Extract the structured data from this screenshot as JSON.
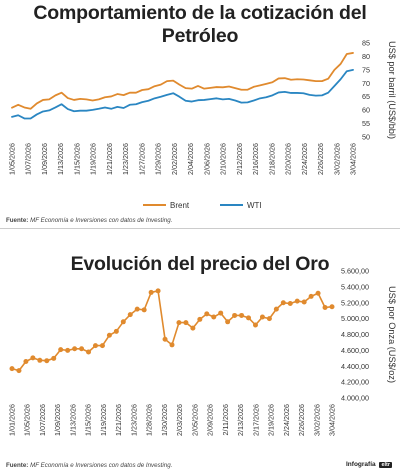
{
  "charts": [
    {
      "title": "Comportamiento de la cotización del Petróleo",
      "source_label": "Fuente:",
      "source_text": "MF Economía e Inversiones con datos de Investing."
    },
    {
      "title": "Evolución del precio del Oro",
      "source_label": "Fuente:",
      "source_text": "MF Economía e Inversiones con datos de Investing.",
      "credit": "Infografía",
      "credit_logo": "eltr"
    }
  ],
  "chart_data": [
    {
      "type": "line",
      "title": "Comportamiento de la cotización del Petróleo",
      "ylabel": "US$ por barril (US$/bbl)",
      "ylim": [
        50,
        85
      ],
      "yticks": [
        50,
        55,
        60,
        65,
        70,
        75,
        80,
        85
      ],
      "axis_position": "right",
      "grid": "none",
      "legend": "bottom",
      "x_tick_labels": [
        "1/05/2026",
        "1/07/2026",
        "1/09/2026",
        "1/13/2026",
        "1/15/2026",
        "1/19/2026",
        "1/21/2026",
        "1/23/2026",
        "1/27/2026",
        "1/29/2026",
        "2/02/2026",
        "2/04/2026",
        "2/06/2026",
        "2/10/2026",
        "2/12/2026",
        "2/16/2026",
        "2/18/2026",
        "2/20/2026",
        "2/24/2026",
        "2/26/2026",
        "3/02/2026",
        "3/04/2026"
      ],
      "series": [
        {
          "name": "Brent",
          "color": "#e08a2e",
          "values": [
            60.9,
            62.0,
            61.0,
            60.5,
            62.5,
            63.8,
            64.0,
            65.5,
            66.5,
            64.5,
            63.8,
            64.2,
            64.0,
            63.6,
            64.0,
            64.8,
            65.1,
            66.0,
            65.6,
            66.5,
            66.5,
            67.5,
            67.8,
            68.9,
            69.5,
            70.8,
            71.0,
            69.5,
            68.2,
            68.0,
            69.0,
            68.0,
            68.3,
            68.6,
            68.5,
            68.8,
            68.2,
            67.6,
            67.6,
            68.7,
            69.2,
            69.8,
            70.4,
            71.8,
            71.9,
            71.3,
            71.5,
            71.4,
            71.1,
            70.8,
            70.8,
            71.7,
            75.0,
            77.2,
            80.9,
            81.3
          ]
        },
        {
          "name": "WTI",
          "color": "#2a86c2",
          "values": [
            57.5,
            58.1,
            56.9,
            56.9,
            58.4,
            59.5,
            59.9,
            61.0,
            62.2,
            60.4,
            59.6,
            59.8,
            59.8,
            60.1,
            60.5,
            61.0,
            60.5,
            61.2,
            60.8,
            62.0,
            62.2,
            63.0,
            63.5,
            64.4,
            65.0,
            65.7,
            66.3,
            65.0,
            63.5,
            63.2,
            63.7,
            63.8,
            64.1,
            64.4,
            64.0,
            64.2,
            63.6,
            62.8,
            62.9,
            63.6,
            64.4,
            64.8,
            65.5,
            66.6,
            66.8,
            66.4,
            66.4,
            66.3,
            65.7,
            65.4,
            65.5,
            66.5,
            69.0,
            71.5,
            74.5,
            75.0
          ]
        }
      ]
    },
    {
      "type": "line",
      "title": "Evolución del precio del Oro",
      "ylabel": "US$ por Onza (US$/oz)",
      "ylim": [
        4000,
        5600
      ],
      "yticks": [
        4000,
        4200,
        4400,
        4600,
        4800,
        5000,
        5200,
        5400,
        5600
      ],
      "ytick_labels": [
        "4.000,00",
        "4.200,00",
        "4.400,00",
        "4.600,00",
        "4.800,00",
        "5.000,00",
        "5.200,00",
        "5.400,00",
        "5.600,00"
      ],
      "axis_position": "right",
      "grid": "none",
      "x_tick_labels": [
        "1/01/2026",
        "1/05/2026",
        "1/07/2026",
        "1/09/2026",
        "1/13/2026",
        "1/15/2026",
        "1/19/2026",
        "1/21/2026",
        "1/23/2026",
        "1/28/2026",
        "1/30/2026",
        "2/03/2026",
        "2/05/2026",
        "2/09/2026",
        "2/11/2026",
        "2/13/2026",
        "2/17/2026",
        "2/19/2026",
        "2/24/2026",
        "2/26/2026",
        "3/02/2026",
        "3/04/2026"
      ],
      "series": [
        {
          "name": "",
          "color": "#e08a2e",
          "values": [
            4370,
            4345,
            4460,
            4505,
            4475,
            4470,
            4500,
            4610,
            4600,
            4620,
            4620,
            4580,
            4660,
            4660,
            4790,
            4840,
            4960,
            5050,
            5120,
            5110,
            5330,
            5350,
            4740,
            4670,
            4950,
            4950,
            4880,
            4990,
            5060,
            5020,
            5070,
            4960,
            5040,
            5040,
            5010,
            4920,
            5020,
            5000,
            5120,
            5200,
            5190,
            5220,
            5210,
            5280,
            5320,
            5140,
            5150
          ]
        }
      ]
    }
  ]
}
